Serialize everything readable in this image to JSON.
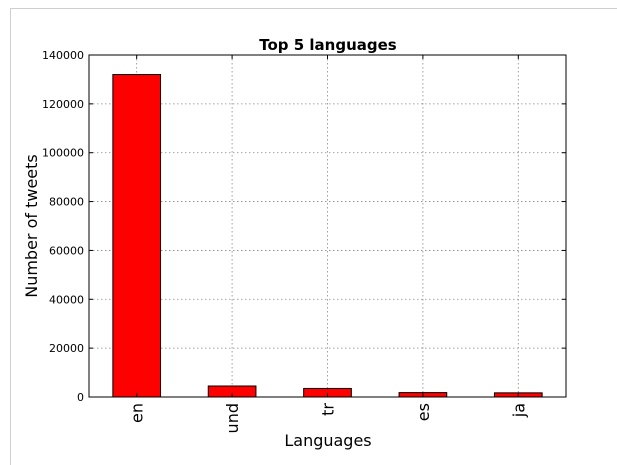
{
  "chart_data": {
    "type": "bar",
    "title": "Top 5 languages",
    "xlabel": "Languages",
    "ylabel": "Number of tweets",
    "categories": [
      "en",
      "und",
      "tr",
      "es",
      "ja"
    ],
    "values": [
      132000,
      4500,
      3500,
      1800,
      1700
    ],
    "ylim": [
      0,
      140000
    ],
    "yticks": [
      0,
      20000,
      40000,
      60000,
      80000,
      100000,
      120000,
      140000
    ],
    "grid": true,
    "bar_color": "#ff0000",
    "edge_color": "#000000"
  }
}
